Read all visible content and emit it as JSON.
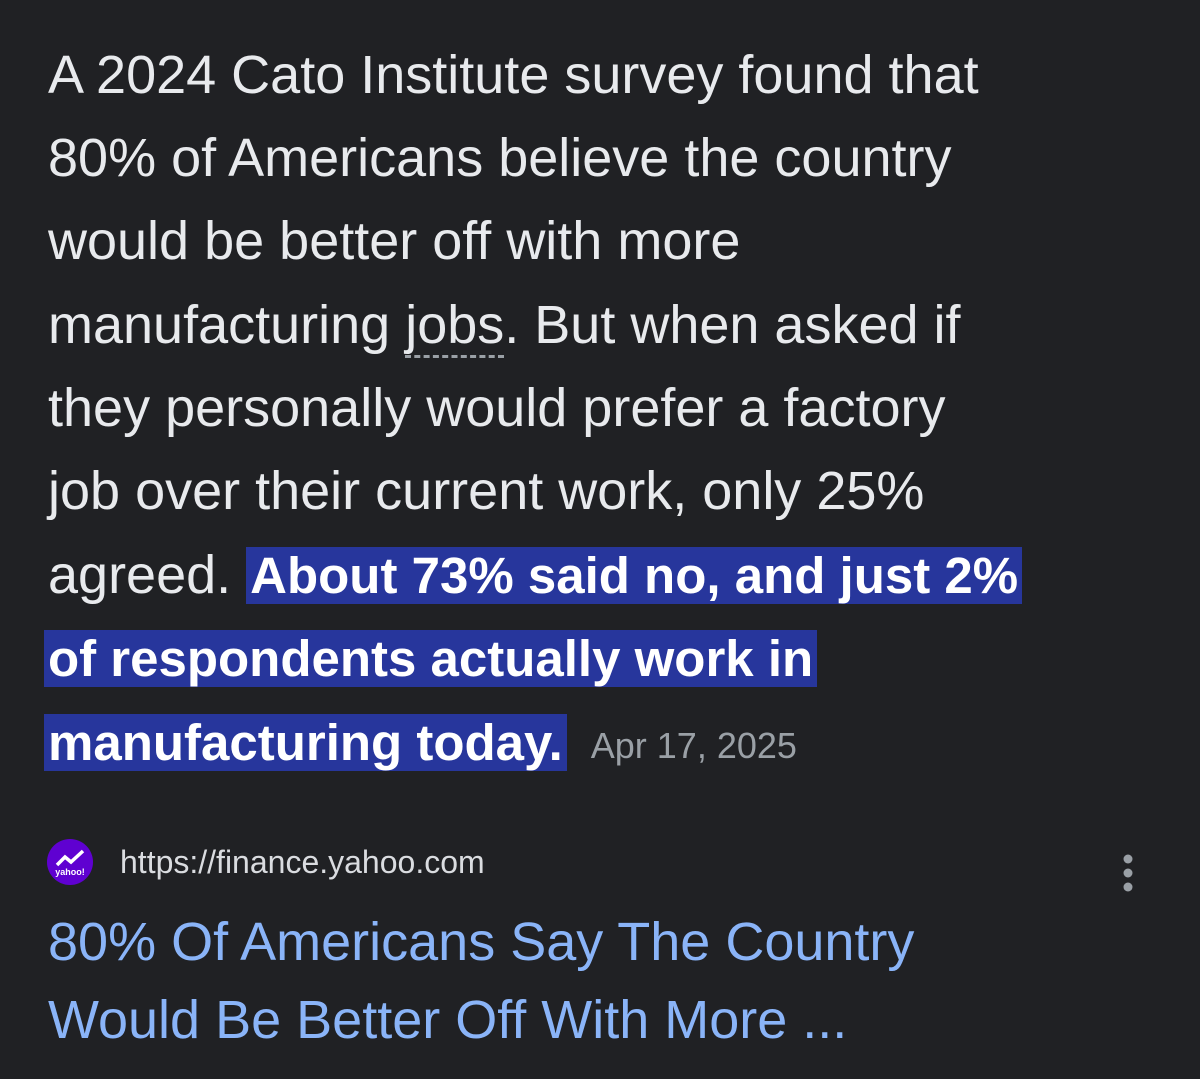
{
  "snippet": {
    "lines": [
      "A 2024 Cato Institute survey found that",
      "80% of Americans believe the country",
      "would be better off with more"
    ],
    "line4": {
      "before": "manufacturing ",
      "term": "jobs",
      "after": ". But when asked if"
    },
    "lines_after": [
      "they personally would prefer a factory",
      "job over their current work, only 25%"
    ],
    "line7_plain": "agreed. ",
    "highlight_lines": [
      "About 73% said no, and just 2%",
      "of respondents actually work in",
      "manufacturing today."
    ],
    "date": "Apr 17, 2025"
  },
  "source": {
    "icon_text": "yahoo!",
    "url": "https://finance.yahoo.com",
    "title_lines": [
      "80% Of Americans Say The Country",
      "Would Be Better Off With More ..."
    ]
  }
}
